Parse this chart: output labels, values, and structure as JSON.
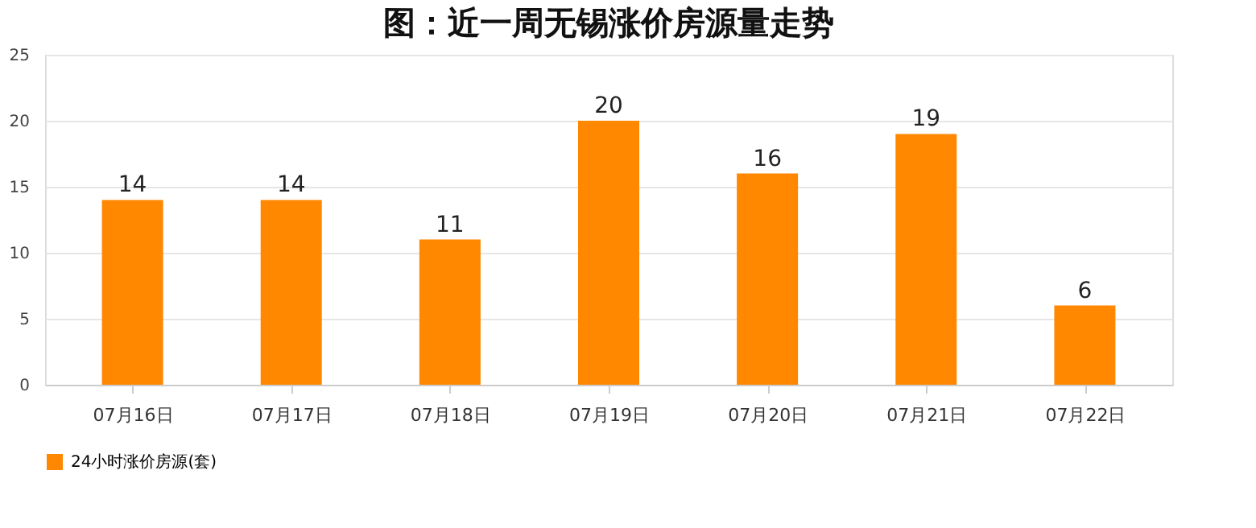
{
  "chart_data": {
    "type": "bar",
    "title": "图：近一周无锡涨价房源量走势",
    "categories": [
      "07月16日",
      "07月17日",
      "07月18日",
      "07月19日",
      "07月20日",
      "07月21日",
      "07月22日"
    ],
    "series": [
      {
        "name": "24小时涨价房源(套)",
        "color": "#ff8800",
        "values": [
          14,
          14,
          11,
          20,
          16,
          19,
          6
        ]
      }
    ],
    "ylim": [
      0,
      25
    ],
    "yticks": [
      0,
      5,
      10,
      15,
      20,
      25
    ],
    "grid": "y",
    "legend": "bottom",
    "data_labels": true
  }
}
